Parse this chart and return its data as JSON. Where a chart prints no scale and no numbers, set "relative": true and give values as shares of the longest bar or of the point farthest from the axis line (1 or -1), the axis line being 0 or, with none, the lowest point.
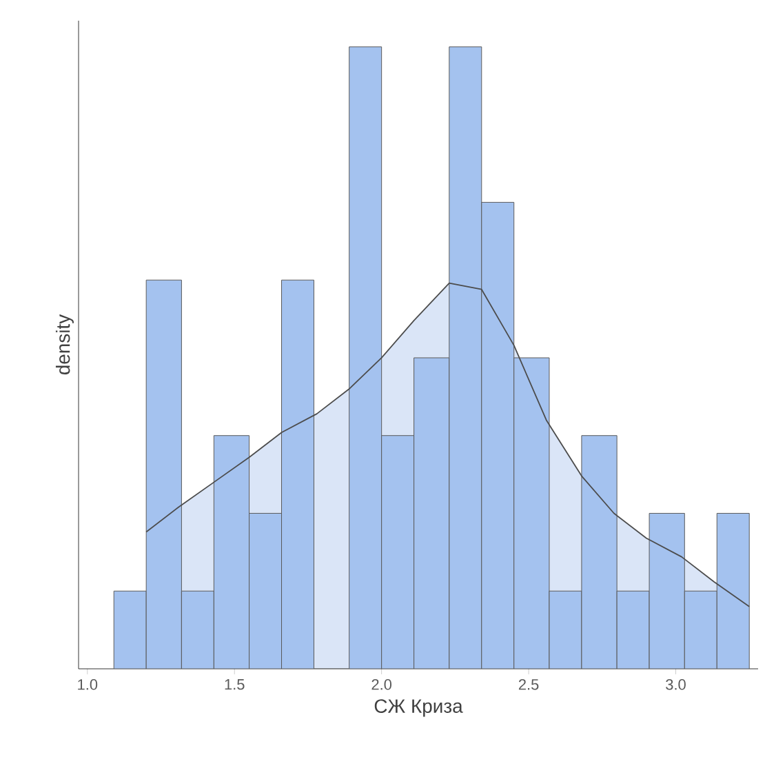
{
  "chart_data": {
    "type": "histogram",
    "xlabel": "СЖ Криза",
    "ylabel": "density",
    "relative": true,
    "bins": [
      1.09,
      1.2,
      1.32,
      1.43,
      1.55,
      1.66,
      1.77,
      1.89,
      2.0,
      2.11,
      2.23,
      2.34,
      2.45,
      2.57,
      2.68,
      2.8,
      2.91,
      3.03,
      3.14,
      3.25
    ],
    "values": [
      0.125,
      0.625,
      0.125,
      0.375,
      0.25,
      0.625,
      0,
      1,
      0.375,
      0.5,
      1,
      0.75,
      0.5,
      0.125,
      0.375,
      0.125,
      0.25,
      0.125,
      0.25
    ],
    "color": "#a4c2ef",
    "series": [
      {
        "type": "area",
        "color": "#dae5f7",
        "x": [
          1.2,
          1.31,
          1.43,
          1.55,
          1.66,
          1.78,
          1.89,
          2.0,
          2.11,
          2.23,
          2.34,
          2.45,
          2.56,
          2.68,
          2.79,
          2.9,
          3.02,
          3.13,
          3.25
        ],
        "values": [
          0.22,
          0.26,
          0.3,
          0.34,
          0.38,
          0.41,
          0.45,
          0.5,
          0.56,
          0.62,
          0.61,
          0.52,
          0.4,
          0.31,
          0.25,
          0.21,
          0.18,
          0.14,
          0.1
        ]
      }
    ],
    "xlim": [
      0.97,
      3.28
    ],
    "xticks": [
      {
        "value": 1,
        "label": "1.0"
      },
      {
        "value": 1.5,
        "label": "1.5"
      },
      {
        "value": 2,
        "label": "2.0"
      },
      {
        "value": 2.5,
        "label": "2.5"
      },
      {
        "value": 3,
        "label": "3.0"
      }
    ]
  }
}
